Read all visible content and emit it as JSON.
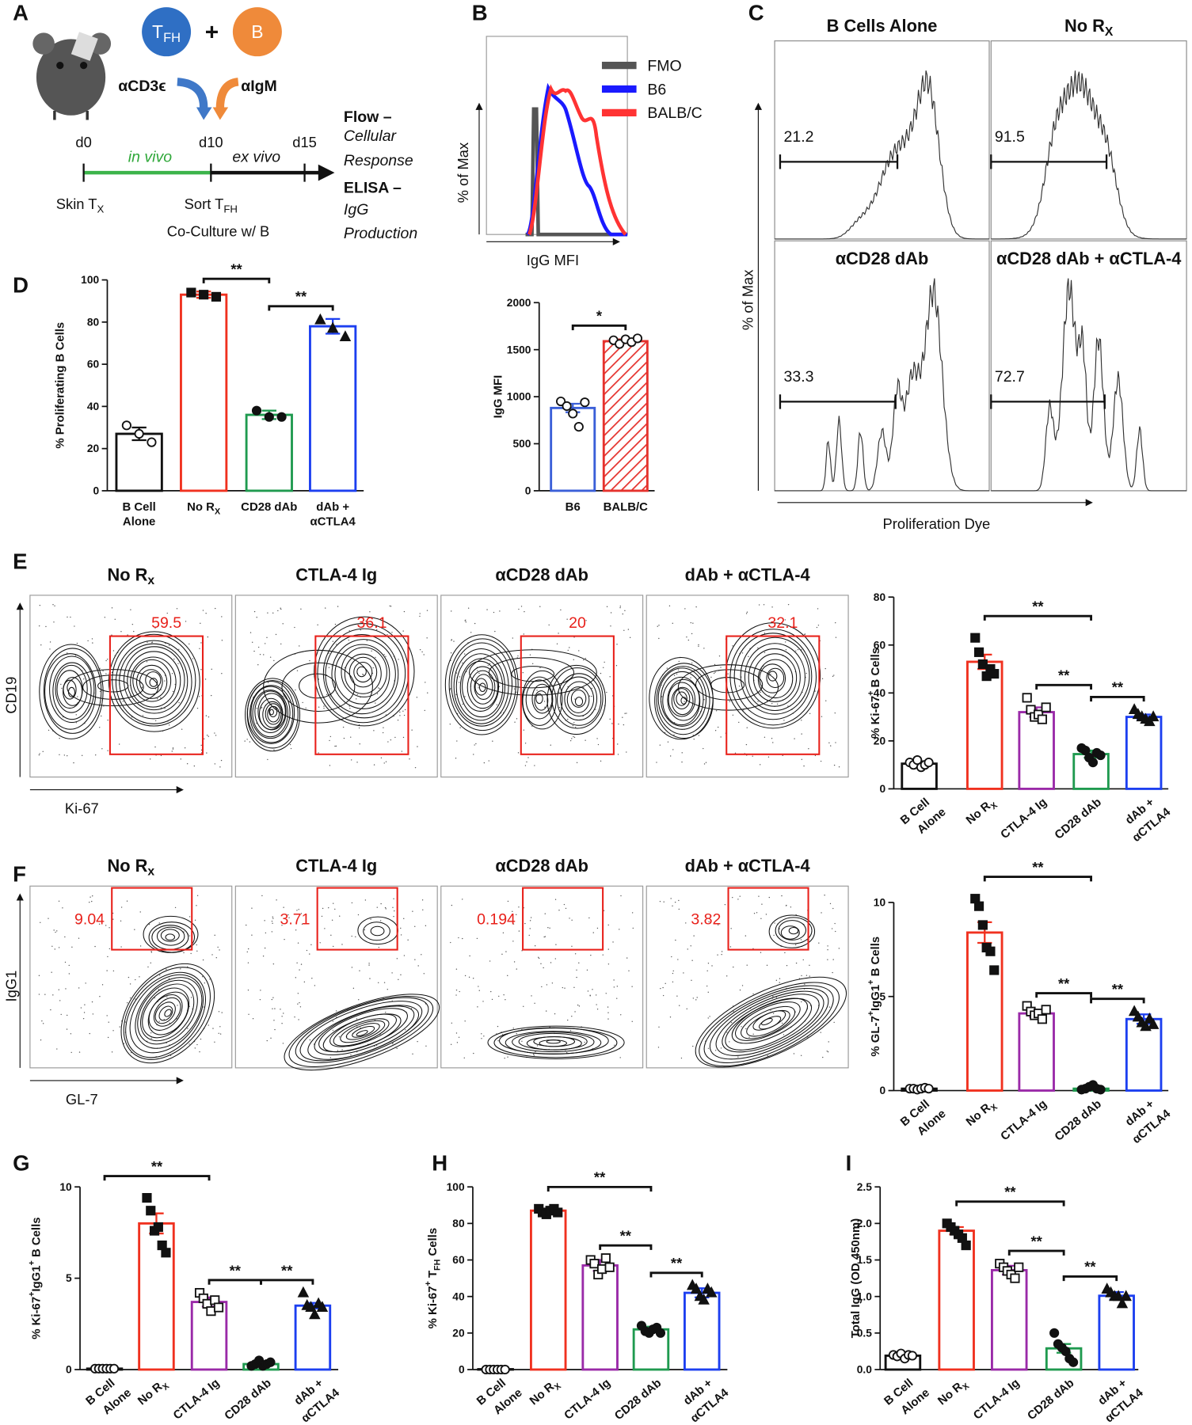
{
  "panel_labels": [
    "A",
    "B",
    "C",
    "D",
    "E",
    "F",
    "G",
    "H",
    "I"
  ],
  "schematic": {
    "tfh": [
      "T",
      {
        "sub": "FH"
      }
    ],
    "plus": "+",
    "b": "B",
    "anti_cd3": "αCD3ϵ",
    "anti_igm": "αIgM",
    "days": [
      "d0",
      "d10",
      "d15"
    ],
    "in_vivo": "in vivo",
    "ex_vivo": "ex vivo",
    "skin": [
      "Skin T",
      {
        "sub": "X"
      }
    ],
    "sort": [
      "Sort T",
      {
        "sub": "FH"
      }
    ],
    "coculture": "Co-Culture w/ B",
    "readouts": [
      "Flow –",
      "Cellular",
      "Response",
      "ELISA –",
      "IgG",
      "Production"
    ]
  },
  "histogram_b": {
    "ylabel": "% of Max",
    "xlabel": "IgG MFI",
    "series": [
      {
        "name": "FMO",
        "color": "#555555"
      },
      {
        "name": "B6",
        "color": "#1a1aff"
      },
      {
        "name": "BALB/C",
        "color": "#ff3333"
      }
    ]
  },
  "histogram_c": {
    "ylabel": "% of Max",
    "xlabel": "Proliferation Dye",
    "panels": [
      {
        "title": "B Cells Alone",
        "gate": 21.2
      },
      {
        "title": [
          "No R",
          {
            "sub": "X"
          }
        ],
        "gate": 91.5
      },
      {
        "title": "αCD28 dAb",
        "gate": 33.3
      },
      {
        "title": "αCD28 dAb + αCTLA-4",
        "gate": 72.7
      }
    ]
  },
  "flow_e": {
    "ylabel": "CD19",
    "xlabel": "Ki-67",
    "panels": [
      {
        "title": [
          "No R",
          {
            "sub": "x"
          }
        ],
        "gate": 59.5
      },
      {
        "title": "CTLA-4 Ig",
        "gate": 36.1
      },
      {
        "title": "αCD28 dAb",
        "gate": 20
      },
      {
        "title": "dAb + αCTLA-4",
        "gate": 32.1
      }
    ]
  },
  "flow_f": {
    "ylabel": "IgG1",
    "xlabel": "GL-7",
    "panels": [
      {
        "title": [
          "No R",
          {
            "sub": "x"
          }
        ],
        "gate": 9.04
      },
      {
        "title": "CTLA-4 Ig",
        "gate": 3.71
      },
      {
        "title": "αCD28 dAb",
        "gate": 0.194
      },
      {
        "title": "dAb + αCTLA-4",
        "gate": 3.82
      }
    ]
  },
  "chart_data": [
    {
      "type": "bar",
      "ylabel": "% Proliferating B Cells",
      "categories": [
        [
          "B Cell",
          "Alone"
        ],
        [
          [
            "No R",
            {
              "sub": "X"
            }
          ]
        ],
        [
          "CD28 dAb"
        ],
        [
          "dAb +",
          "αCTLA4"
        ]
      ],
      "values": [
        27,
        93,
        36,
        78
      ],
      "errors": [
        3,
        1.5,
        2,
        3.5
      ],
      "points": [
        [
          31,
          27,
          23
        ],
        [
          94,
          93,
          92
        ],
        [
          38,
          35,
          35
        ],
        [
          81,
          77,
          73
        ]
      ],
      "colors": [
        "#111111",
        "#f0311f",
        "#1f9a4f",
        "#1c3ff0"
      ],
      "hatch": [
        false,
        false,
        false,
        false
      ],
      "markers": [
        "open-circle",
        "filled-square",
        "filled-circle",
        "filled-triangle"
      ],
      "ylim": [
        0,
        100
      ],
      "yticks": [
        0,
        20,
        40,
        60,
        80,
        100
      ],
      "significance": [
        {
          "from": 1,
          "to": 2,
          "label": "**"
        },
        {
          "from": 2,
          "to": 3,
          "label": "**"
        }
      ]
    },
    {
      "type": "bar",
      "ylabel": "IgG MFI",
      "categories": [
        [
          "B6"
        ],
        [
          "BALB/C"
        ]
      ],
      "values": [
        880,
        1590
      ],
      "errors": [
        45,
        20
      ],
      "points": [
        [
          950,
          900,
          820,
          680,
          940
        ],
        [
          1600,
          1560,
          1610,
          1580,
          1620
        ]
      ],
      "colors": [
        "#3a5fd8",
        "#e5322d"
      ],
      "hatch": [
        false,
        true
      ],
      "markers": [
        "open-circle",
        "open-circle"
      ],
      "ylim": [
        0,
        2000
      ],
      "yticks": [
        0,
        500,
        1000,
        1500,
        2000
      ],
      "significance": [
        {
          "from": 0,
          "to": 1,
          "label": "*"
        }
      ]
    },
    {
      "type": "bar",
      "ylabel": [
        "% Ki-67",
        {
          "sup": "+"
        },
        " B Cells"
      ],
      "categories": [
        [
          "B Cell",
          "Alone"
        ],
        [
          [
            "No R",
            {
              "sub": "X"
            }
          ]
        ],
        [
          "CTLA-4 Ig"
        ],
        [
          "CD28 dAb"
        ],
        [
          "dAb +",
          "αCTLA4"
        ]
      ],
      "values": [
        10.5,
        53,
        32,
        14.5,
        30
      ],
      "errors": [
        1,
        3,
        2,
        1.5,
        1
      ],
      "points": [
        [
          11,
          10,
          12,
          9,
          10,
          11
        ],
        [
          63,
          57,
          52,
          47,
          50,
          48
        ],
        [
          38,
          33,
          30,
          31,
          29,
          34
        ],
        [
          17,
          16,
          13,
          11,
          15,
          14
        ],
        [
          33,
          31,
          30,
          29,
          28,
          30
        ]
      ],
      "colors": [
        "#111111",
        "#f0311f",
        "#9a2aa8",
        "#1f9a4f",
        "#1c3ff0"
      ],
      "hatch": [
        false,
        false,
        false,
        false,
        false
      ],
      "markers": [
        "open-circle",
        "filled-square",
        "open-square",
        "filled-circle",
        "filled-triangle"
      ],
      "ylim": [
        0,
        80
      ],
      "yticks": [
        0,
        20,
        40,
        60,
        80
      ],
      "significance": [
        {
          "from": 1,
          "to": 3,
          "label": "**"
        },
        {
          "from": 2,
          "to": 3,
          "label": "**"
        },
        {
          "from": 3,
          "to": 4,
          "label": "**"
        }
      ]
    },
    {
      "type": "bar",
      "ylabel": [
        "% GL-7",
        {
          "sup": "+"
        },
        "IgG1",
        {
          "sup": "+"
        },
        " B Cells"
      ],
      "categories": [
        [
          "B Cell",
          "Alone"
        ],
        [
          [
            "No R",
            {
              "sub": "X"
            }
          ]
        ],
        [
          "CTLA-4 Ig"
        ],
        [
          "CD28 dAb"
        ],
        [
          "dAb +",
          "αCTLA4"
        ]
      ],
      "values": [
        0.1,
        8.4,
        4.1,
        0.1,
        3.8
      ],
      "errors": [
        0.05,
        0.55,
        0.2,
        0.05,
        0.25
      ],
      "points": [
        [
          0.1,
          0.1,
          0.05,
          0.1,
          0.15,
          0.1
        ],
        [
          10.2,
          9.8,
          8.8,
          7.6,
          7.4,
          6.4
        ],
        [
          4.5,
          4.2,
          4.0,
          4.1,
          3.8,
          4.3
        ],
        [
          0.05,
          0.1,
          0.2,
          0.3,
          0.1,
          0.05
        ],
        [
          4.2,
          3.9,
          3.6,
          3.4,
          3.8,
          3.5
        ]
      ],
      "colors": [
        "#111111",
        "#f0311f",
        "#9a2aa8",
        "#1f9a4f",
        "#1c3ff0"
      ],
      "hatch": [
        false,
        false,
        false,
        false,
        false
      ],
      "markers": [
        "open-circle",
        "filled-square",
        "open-square",
        "filled-circle",
        "filled-triangle"
      ],
      "ylim": [
        0,
        10
      ],
      "yticks": [
        0,
        5,
        10
      ],
      "significance": [
        {
          "from": 1,
          "to": 3,
          "label": "**"
        },
        {
          "from": 2,
          "to": 3,
          "label": "**"
        },
        {
          "from": 3,
          "to": 4,
          "label": "**"
        }
      ]
    },
    {
      "type": "bar",
      "ylabel": [
        "% Ki-67",
        {
          "sup": "+"
        },
        "IgG1",
        {
          "sup": "+"
        },
        " B Cells"
      ],
      "categories": [
        [
          "B Cell",
          "Alone"
        ],
        [
          [
            "No R",
            {
              "sub": "X"
            }
          ]
        ],
        [
          "CTLA-4 Ig"
        ],
        [
          "CD28 dAb"
        ],
        [
          "dAb +",
          "αCTLA4"
        ]
      ],
      "values": [
        0.05,
        8.0,
        3.7,
        0.3,
        3.5
      ],
      "errors": [
        0.03,
        0.55,
        0.25,
        0.08,
        0.15
      ],
      "points": [
        [
          0.05,
          0.05,
          0.05,
          0.05,
          0.05,
          0.05
        ],
        [
          9.4,
          8.7,
          7.6,
          7.8,
          6.8,
          6.4
        ],
        [
          4.2,
          3.9,
          3.6,
          3.2,
          3.8,
          3.4
        ],
        [
          0.2,
          0.3,
          0.5,
          0.2,
          0.3,
          0.4
        ],
        [
          4.2,
          3.5,
          3.4,
          3.0,
          3.6,
          3.4
        ]
      ],
      "colors": [
        "#111111",
        "#f0311f",
        "#9a2aa8",
        "#1f9a4f",
        "#1c3ff0"
      ],
      "hatch": [
        false,
        false,
        false,
        false,
        false
      ],
      "markers": [
        "open-circle",
        "filled-square",
        "open-square",
        "filled-circle",
        "filled-triangle"
      ],
      "ylim": [
        0,
        10
      ],
      "yticks": [
        0,
        5,
        10
      ],
      "significance": [
        {
          "from": 0,
          "to": 2,
          "label": "**"
        },
        {
          "from": 2,
          "to": 3,
          "label": "**"
        },
        {
          "from": 3,
          "to": 4,
          "label": "**"
        }
      ]
    },
    {
      "type": "bar",
      "ylabel": [
        "% Ki-67",
        {
          "sup": "+"
        },
        " T",
        {
          "sub": "FH"
        },
        " Cells"
      ],
      "categories": [
        [
          "B Cell",
          "Alone"
        ],
        [
          [
            "No R",
            {
              "sub": "X"
            }
          ]
        ],
        [
          "CTLA-4 Ig"
        ],
        [
          "CD28 dAb"
        ],
        [
          "dAb +",
          "αCTLA4"
        ]
      ],
      "values": [
        0.2,
        87,
        57,
        22,
        42
      ],
      "errors": [
        0.1,
        1,
        3,
        1.5,
        2.5
      ],
      "points": [
        [
          0,
          0,
          0,
          0,
          0,
          0
        ],
        [
          88,
          86,
          85,
          87,
          88,
          86
        ],
        [
          60,
          58,
          52,
          55,
          61,
          56
        ],
        [
          24,
          21,
          20,
          22,
          23,
          20
        ],
        [
          46,
          44,
          40,
          38,
          44,
          42
        ]
      ],
      "colors": [
        "#111111",
        "#f0311f",
        "#9a2aa8",
        "#1f9a4f",
        "#1c3ff0"
      ],
      "hatch": [
        false,
        false,
        false,
        false,
        false
      ],
      "markers": [
        "open-circle",
        "filled-square",
        "open-square",
        "filled-circle",
        "filled-triangle"
      ],
      "ylim": [
        0,
        100
      ],
      "yticks": [
        0,
        20,
        40,
        60,
        80,
        100
      ],
      "significance": [
        {
          "from": 1,
          "to": 3,
          "label": "**"
        },
        {
          "from": 2,
          "to": 3,
          "label": "**"
        },
        {
          "from": 3,
          "to": 4,
          "label": "**"
        }
      ]
    },
    {
      "type": "bar",
      "ylabel": "Total IgG (OD 450nm)",
      "categories": [
        [
          "B Cell",
          "Alone"
        ],
        [
          [
            "No R",
            {
              "sub": "X"
            }
          ]
        ],
        [
          "CTLA-4 Ig"
        ],
        [
          "CD28 dAb"
        ],
        [
          "dAb +",
          "αCTLA4"
        ]
      ],
      "values": [
        0.19,
        1.9,
        1.36,
        0.29,
        1.01
      ],
      "errors": [
        0.02,
        0.05,
        0.06,
        0.06,
        0.05
      ],
      "points": [
        [
          0.2,
          0.18,
          0.22,
          0.15,
          0.2,
          0.19
        ],
        [
          2.0,
          1.95,
          1.9,
          1.85,
          1.8,
          1.7
        ],
        [
          1.45,
          1.4,
          1.35,
          1.3,
          1.25,
          1.4
        ],
        [
          0.5,
          0.35,
          0.3,
          0.25,
          0.15,
          0.1
        ],
        [
          1.1,
          1.05,
          1.0,
          1.0,
          0.9,
          1.0
        ]
      ],
      "colors": [
        "#111111",
        "#f0311f",
        "#9a2aa8",
        "#1f9a4f",
        "#1c3ff0"
      ],
      "hatch": [
        false,
        false,
        false,
        false,
        false
      ],
      "markers": [
        "open-circle",
        "filled-square",
        "open-square",
        "filled-circle",
        "filled-triangle"
      ],
      "ylim": [
        0,
        2.5
      ],
      "yticks": [
        {
          "value": 0,
          "label": "0.0"
        },
        {
          "value": 0.5,
          "label": "0.5"
        },
        {
          "value": 1,
          "label": "1.0"
        },
        {
          "value": 1.5,
          "label": "1.5"
        },
        {
          "value": 2,
          "label": "2.0"
        },
        {
          "value": 2.5,
          "label": "2.5"
        }
      ],
      "significance": [
        {
          "from": 1,
          "to": 3,
          "label": "**"
        },
        {
          "from": 2,
          "to": 3,
          "label": "**"
        },
        {
          "from": 3,
          "to": 4,
          "label": "**"
        }
      ]
    }
  ]
}
